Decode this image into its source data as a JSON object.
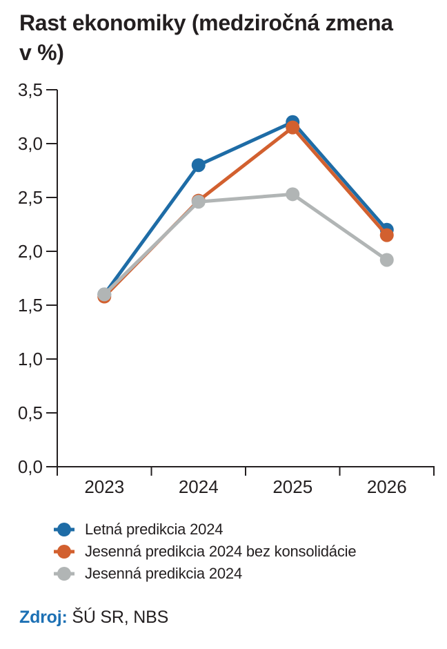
{
  "title": {
    "full": "Rast ekonomiky (medziročná zmena v %)",
    "line1": "Rast ekonomiky (medziročná zmena",
    "line2": "v %)"
  },
  "chart_data": {
    "type": "line",
    "categories": [
      "2023",
      "2024",
      "2025",
      "2026"
    ],
    "series": [
      {
        "name": "Letná predikcia 2024",
        "color": "#1e6ca6",
        "values": [
          1.6,
          2.8,
          3.2,
          2.2
        ]
      },
      {
        "name": "Jesenná predikcia 2024 bez konsolidácie",
        "color": "#d2602f",
        "values": [
          1.58,
          2.47,
          3.15,
          2.15
        ]
      },
      {
        "name": "Jesenná predikcia 2024",
        "color": "#b1b5b5",
        "values": [
          1.6,
          2.46,
          2.53,
          1.92
        ]
      }
    ],
    "ylim": [
      0,
      3.5
    ],
    "ytick_step": 0.5,
    "ytick_labels": [
      "0,0",
      "0,5",
      "1,0",
      "1,5",
      "2,0",
      "2,5",
      "3,0",
      "3,5"
    ],
    "decimal_separator": ",",
    "grid": false,
    "legend_position": "bottom-left",
    "xlabel": "",
    "ylabel": ""
  },
  "source": {
    "label": "Zdroj:",
    "value": "ŠÚ SR, NBS"
  },
  "colors": {
    "axis": "#231f20",
    "text": "#231f20",
    "source_label_blue": "#1c70b4",
    "background": "#ffffff"
  }
}
